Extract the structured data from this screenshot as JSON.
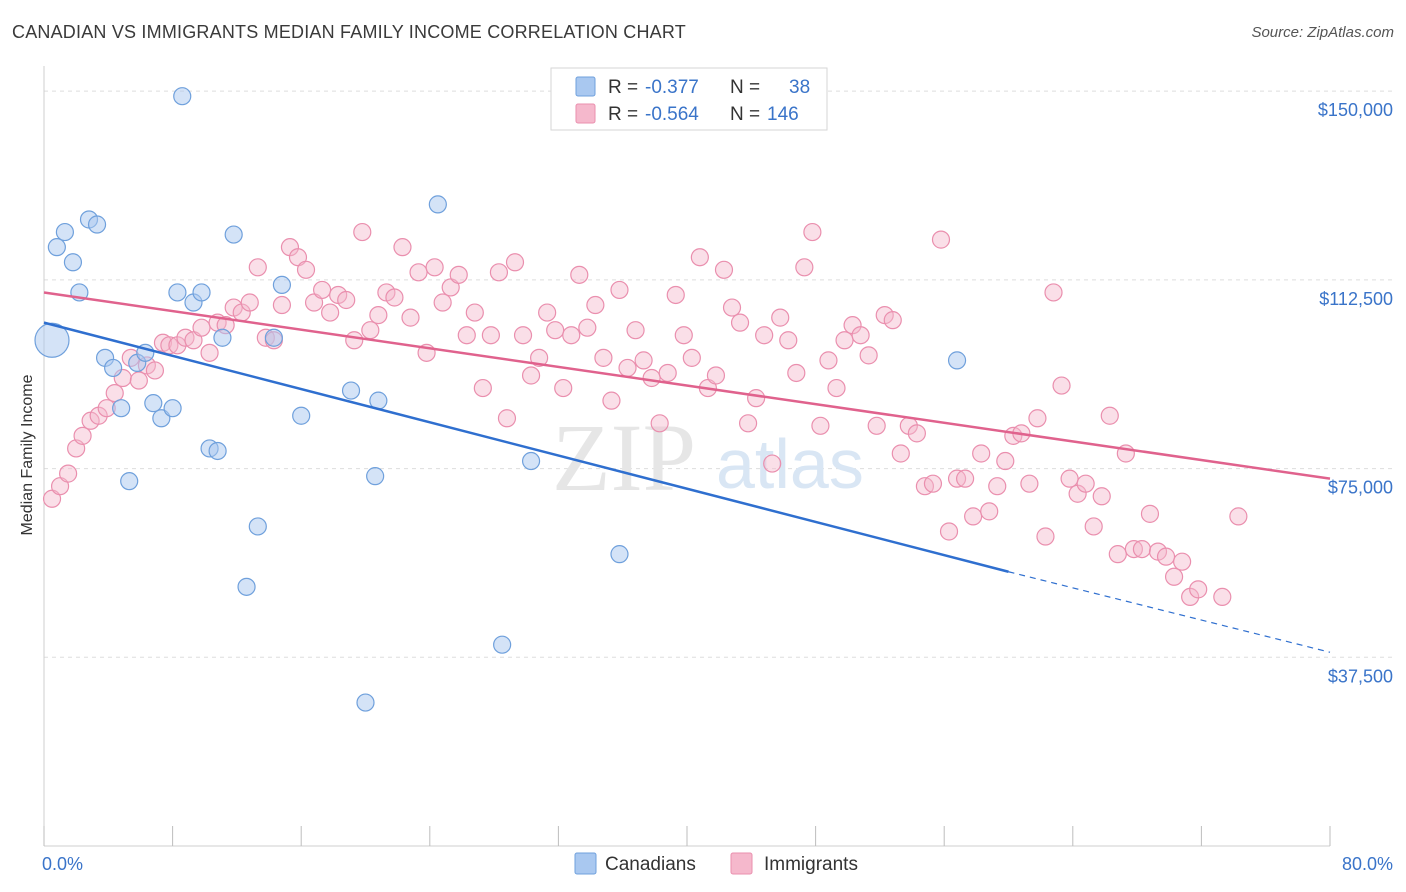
{
  "header": {
    "title": "CANADIAN VS IMMIGRANTS MEDIAN FAMILY INCOME CORRELATION CHART",
    "source": "Source: ZipAtlas.com"
  },
  "watermark": {
    "zip": "ZIP",
    "atlas": "atlas"
  },
  "legend_top": {
    "r_label": "R =",
    "n_label": "N =",
    "rows": [
      {
        "r": "-0.377",
        "n": "38",
        "color": "#a9c8f0"
      },
      {
        "r": "-0.564",
        "n": "146",
        "color": "#f5b8cc"
      }
    ]
  },
  "legend_bottom": {
    "items": [
      {
        "label": "Canadians",
        "color": "#a9c8f0"
      },
      {
        "label": "Immigrants",
        "color": "#f5b8cc"
      }
    ]
  },
  "colors": {
    "canadian_fill": "#a9c8f0",
    "canadian_stroke": "#6fa0dc",
    "canadian_line": "#2f6fcf",
    "immigrant_fill": "#f5b8cc",
    "immigrant_stroke": "#ea8fae",
    "immigrant_line": "#e0628d",
    "tick_text": "#3a74c9",
    "grid": "#dddddd"
  },
  "chart_data": {
    "type": "scatter",
    "title": "CANADIAN VS IMMIGRANTS MEDIAN FAMILY INCOME CORRELATION CHART",
    "xlabel": "",
    "ylabel": "Median Family Income",
    "xlim": [
      0,
      80
    ],
    "ylim": [
      0,
      155000
    ],
    "x_tick_labels": [
      "0.0%",
      "80.0%"
    ],
    "y_ticks": [
      37500,
      75000,
      112500,
      150000
    ],
    "y_tick_labels": [
      "$37,500",
      "$75,000",
      "$112,500",
      "$150,000"
    ],
    "grid": true,
    "legend_position": "top-center",
    "series": [
      {
        "name": "Canadians",
        "R": -0.377,
        "N": 38,
        "trend": {
          "x": [
            0,
            60,
            80
          ],
          "y": [
            104000,
            54500,
            38500
          ],
          "dashed_from_x": 60
        },
        "points": [
          [
            0.4,
            100500
          ],
          [
            0.8,
            119000
          ],
          [
            1.3,
            122000
          ],
          [
            1.8,
            116000
          ],
          [
            2.2,
            110000
          ],
          [
            2.8,
            124500
          ],
          [
            3.3,
            123500
          ],
          [
            3.8,
            97000
          ],
          [
            4.3,
            95000
          ],
          [
            4.8,
            87000
          ],
          [
            5.3,
            72500
          ],
          [
            5.8,
            96000
          ],
          [
            6.3,
            98000
          ],
          [
            6.8,
            88000
          ],
          [
            7.3,
            85000
          ],
          [
            8.0,
            87000
          ],
          [
            8.3,
            110000
          ],
          [
            8.6,
            149000
          ],
          [
            9.3,
            108000
          ],
          [
            9.8,
            110000
          ],
          [
            10.3,
            79000
          ],
          [
            10.8,
            78500
          ],
          [
            11.1,
            101000
          ],
          [
            11.8,
            121500
          ],
          [
            12.6,
            51500
          ],
          [
            13.3,
            63500
          ],
          [
            14.3,
            101000
          ],
          [
            14.8,
            111500
          ],
          [
            16.0,
            85500
          ],
          [
            19.1,
            90500
          ],
          [
            20.0,
            28500
          ],
          [
            20.6,
            73500
          ],
          [
            20.8,
            88500
          ],
          [
            24.5,
            127500
          ],
          [
            28.5,
            40000
          ],
          [
            30.3,
            76500
          ],
          [
            35.8,
            58000
          ],
          [
            56.8,
            96500
          ]
        ]
      },
      {
        "name": "Immigrants",
        "R": -0.564,
        "N": 146,
        "trend": {
          "x": [
            0,
            80
          ],
          "y": [
            110000,
            73000
          ]
        },
        "points": [
          [
            0.5,
            69000
          ],
          [
            1.0,
            71500
          ],
          [
            1.5,
            74000
          ],
          [
            2.0,
            79000
          ],
          [
            2.4,
            81500
          ],
          [
            2.9,
            84500
          ],
          [
            3.4,
            85500
          ],
          [
            3.9,
            87000
          ],
          [
            4.4,
            90000
          ],
          [
            4.9,
            93000
          ],
          [
            5.4,
            97000
          ],
          [
            5.9,
            92500
          ],
          [
            6.4,
            95500
          ],
          [
            6.9,
            94500
          ],
          [
            7.4,
            100000
          ],
          [
            7.8,
            99500
          ],
          [
            8.3,
            99500
          ],
          [
            8.8,
            101000
          ],
          [
            9.3,
            100500
          ],
          [
            9.8,
            103000
          ],
          [
            10.3,
            98000
          ],
          [
            10.8,
            104000
          ],
          [
            11.3,
            103500
          ],
          [
            11.8,
            107000
          ],
          [
            12.3,
            106000
          ],
          [
            12.8,
            108000
          ],
          [
            13.3,
            115000
          ],
          [
            13.8,
            101000
          ],
          [
            14.3,
            100500
          ],
          [
            14.8,
            107500
          ],
          [
            15.3,
            119000
          ],
          [
            15.8,
            117000
          ],
          [
            16.3,
            114500
          ],
          [
            16.8,
            108000
          ],
          [
            17.3,
            110500
          ],
          [
            17.8,
            106000
          ],
          [
            18.3,
            109500
          ],
          [
            18.8,
            108500
          ],
          [
            19.3,
            100500
          ],
          [
            19.8,
            122000
          ],
          [
            20.3,
            102500
          ],
          [
            20.8,
            105500
          ],
          [
            21.3,
            110000
          ],
          [
            21.8,
            109000
          ],
          [
            22.3,
            119000
          ],
          [
            22.8,
            105000
          ],
          [
            23.3,
            114000
          ],
          [
            23.8,
            98000
          ],
          [
            24.3,
            115000
          ],
          [
            24.8,
            108000
          ],
          [
            25.3,
            111000
          ],
          [
            25.8,
            113500
          ],
          [
            26.3,
            101500
          ],
          [
            26.8,
            106000
          ],
          [
            27.3,
            91000
          ],
          [
            27.8,
            101500
          ],
          [
            28.3,
            114000
          ],
          [
            28.8,
            85000
          ],
          [
            29.3,
            116000
          ],
          [
            29.8,
            101500
          ],
          [
            30.3,
            93500
          ],
          [
            30.8,
            97000
          ],
          [
            31.3,
            106000
          ],
          [
            31.8,
            102500
          ],
          [
            32.3,
            91000
          ],
          [
            32.8,
            101500
          ],
          [
            33.3,
            113500
          ],
          [
            33.8,
            103000
          ],
          [
            34.3,
            107500
          ],
          [
            34.8,
            97000
          ],
          [
            35.3,
            88500
          ],
          [
            35.8,
            110500
          ],
          [
            36.3,
            95000
          ],
          [
            36.8,
            102500
          ],
          [
            37.3,
            96500
          ],
          [
            37.8,
            93000
          ],
          [
            38.3,
            84000
          ],
          [
            38.8,
            94000
          ],
          [
            39.3,
            109500
          ],
          [
            39.8,
            101500
          ],
          [
            40.3,
            97000
          ],
          [
            40.8,
            117000
          ],
          [
            41.3,
            91000
          ],
          [
            41.8,
            93500
          ],
          [
            42.3,
            114500
          ],
          [
            42.8,
            107000
          ],
          [
            43.3,
            104000
          ],
          [
            43.8,
            84000
          ],
          [
            44.3,
            89000
          ],
          [
            44.8,
            101500
          ],
          [
            45.3,
            76000
          ],
          [
            45.8,
            105000
          ],
          [
            46.3,
            100500
          ],
          [
            46.8,
            94000
          ],
          [
            47.3,
            115000
          ],
          [
            47.8,
            122000
          ],
          [
            48.3,
            83500
          ],
          [
            48.8,
            96500
          ],
          [
            49.3,
            91000
          ],
          [
            49.8,
            100500
          ],
          [
            50.3,
            103500
          ],
          [
            50.8,
            101500
          ],
          [
            51.3,
            97500
          ],
          [
            51.8,
            83500
          ],
          [
            52.3,
            105500
          ],
          [
            52.8,
            104500
          ],
          [
            53.3,
            78000
          ],
          [
            53.8,
            83500
          ],
          [
            54.3,
            82000
          ],
          [
            54.8,
            71500
          ],
          [
            55.3,
            72000
          ],
          [
            55.8,
            120500
          ],
          [
            56.3,
            62500
          ],
          [
            56.8,
            73000
          ],
          [
            57.3,
            73000
          ],
          [
            57.8,
            65500
          ],
          [
            58.3,
            78000
          ],
          [
            58.8,
            66500
          ],
          [
            59.3,
            71500
          ],
          [
            59.8,
            76500
          ],
          [
            60.3,
            81500
          ],
          [
            60.8,
            82000
          ],
          [
            61.3,
            72000
          ],
          [
            61.8,
            85000
          ],
          [
            62.3,
            61500
          ],
          [
            62.8,
            110000
          ],
          [
            63.3,
            91500
          ],
          [
            63.8,
            73000
          ],
          [
            64.3,
            70000
          ],
          [
            64.8,
            72000
          ],
          [
            65.3,
            63500
          ],
          [
            65.8,
            69500
          ],
          [
            66.3,
            85500
          ],
          [
            66.8,
            58000
          ],
          [
            67.3,
            78000
          ],
          [
            67.8,
            59000
          ],
          [
            68.3,
            59000
          ],
          [
            68.8,
            66000
          ],
          [
            69.3,
            58500
          ],
          [
            69.8,
            57500
          ],
          [
            70.3,
            53500
          ],
          [
            70.8,
            56500
          ],
          [
            71.3,
            49500
          ],
          [
            71.8,
            51000
          ],
          [
            73.3,
            49500
          ],
          [
            74.3,
            65500
          ]
        ]
      }
    ]
  }
}
